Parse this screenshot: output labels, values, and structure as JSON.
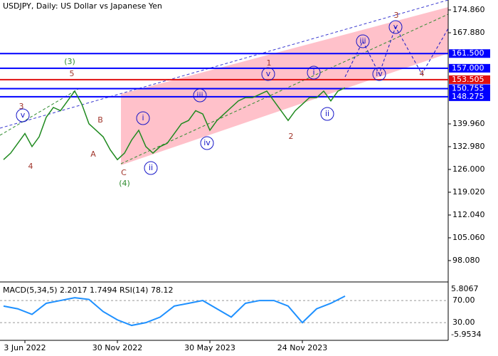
{
  "chart_data": {
    "type": "line",
    "title": "USDJPY, Daily:  US Dollar vs Japanese Yen",
    "categories": [
      null,
      null,
      null,
      "3 Jun 2022",
      null,
      null,
      null,
      null,
      null,
      null,
      null,
      null,
      null,
      null,
      null,
      null,
      "30 Nov 2022",
      null,
      null,
      null,
      null,
      null,
      null,
      null,
      null,
      null,
      null,
      null,
      null,
      "30 May 2023",
      null,
      null,
      null,
      null,
      null,
      null,
      null,
      null,
      null,
      null,
      null,
      null,
      "24 Nov 2023",
      null,
      null,
      null,
      null,
      null,
      null
    ],
    "series": [
      {
        "color": "#1f8a1f",
        "values": [
          129,
          131,
          134,
          137,
          133,
          136,
          142,
          145,
          144,
          147,
          150,
          146,
          140,
          138,
          136,
          132,
          129,
          131,
          135,
          138,
          133,
          131,
          133,
          134,
          137,
          140,
          141,
          144,
          143,
          138,
          141,
          143,
          145,
          147,
          148,
          148,
          149,
          150,
          147,
          144,
          141,
          144,
          146,
          148,
          148,
          150,
          147,
          150,
          151
        ]
      }
    ],
    "ylim": [
      91.75,
      177.91
    ],
    "yticks": [
      {
        "value": 174.86,
        "label": "174.860"
      },
      {
        "value": 167.88,
        "label": "167.880"
      },
      {
        "value": 139.96,
        "label": "139.960"
      },
      {
        "value": 132.98,
        "label": "132.980"
      },
      {
        "value": 126,
        "label": "126.000"
      },
      {
        "value": 119.02,
        "label": "119.020"
      },
      {
        "value": 112.04,
        "label": "112.040"
      },
      {
        "value": 105.06,
        "label": "105.060"
      },
      {
        "value": 98.08,
        "label": "98.080"
      }
    ],
    "levels": [
      {
        "value": 161.5,
        "label": "161.500",
        "color": "#0000ff"
      },
      {
        "value": 157,
        "label": "157.000",
        "color": "#0000ff"
      },
      {
        "value": 153.505,
        "label": "153.505",
        "color": "#e01010"
      },
      {
        "value": 150.755,
        "label": "150.755",
        "color": "#0000ff"
      },
      {
        "value": 148.275,
        "label": "148.275",
        "color": "#0000ff"
      }
    ],
    "annotations": [
      {
        "text": "(3)",
        "color": "#2e8b2e"
      },
      {
        "text": "5",
        "color": "#a0342a"
      },
      {
        "text": "3",
        "color": "#a0342a"
      },
      {
        "text": "v",
        "color": "#1515c8",
        "circled": true
      },
      {
        "text": "4",
        "color": "#a0342a"
      },
      {
        "text": "B",
        "color": "#a0342a"
      },
      {
        "text": "A",
        "color": "#a0342a"
      },
      {
        "text": "C",
        "color": "#a0342a"
      },
      {
        "text": "(4)",
        "color": "#2e8b2e"
      },
      {
        "text": "i",
        "color": "#1515c8",
        "circled": true
      },
      {
        "text": "ii",
        "color": "#1515c8",
        "circled": true
      },
      {
        "text": "iii",
        "color": "#1515c8",
        "circled": true
      },
      {
        "text": "iv",
        "color": "#1515c8",
        "circled": true
      },
      {
        "text": "1",
        "color": "#a0342a"
      },
      {
        "text": "v",
        "color": "#1515c8",
        "circled": true
      },
      {
        "text": "2",
        "color": "#a0342a"
      },
      {
        "text": "i",
        "color": "#1515c8",
        "circled": true
      },
      {
        "text": "ii",
        "color": "#1515c8",
        "circled": true
      },
      {
        "text": "iii",
        "color": "#1515c8",
        "circled": true
      },
      {
        "text": "iv",
        "color": "#1515c8",
        "circled": true
      },
      {
        "text": "v",
        "color": "#1515c8",
        "circled": true
      },
      {
        "text": "3",
        "color": "#a0342a"
      },
      {
        "text": "4",
        "color": "#a0342a"
      }
    ],
    "indicator": {
      "title": "MACD(5,34,5) 2.2017 1.7494 RSI(14) 78.12",
      "ylim": [
        -2,
        101
      ],
      "yticks": [
        {
          "value": 70,
          "label": "70.00"
        },
        {
          "value": 30,
          "label": "30.00"
        }
      ],
      "scale_labels": [
        "5.8067",
        "-5.9534"
      ],
      "rsi": {
        "color": "#1e90ff",
        "values": [
          60,
          55,
          45,
          65,
          70,
          75,
          72,
          50,
          35,
          25,
          30,
          40,
          60,
          65,
          70,
          55,
          40,
          65,
          70,
          70,
          60,
          30,
          55,
          65,
          78
        ]
      }
    }
  }
}
